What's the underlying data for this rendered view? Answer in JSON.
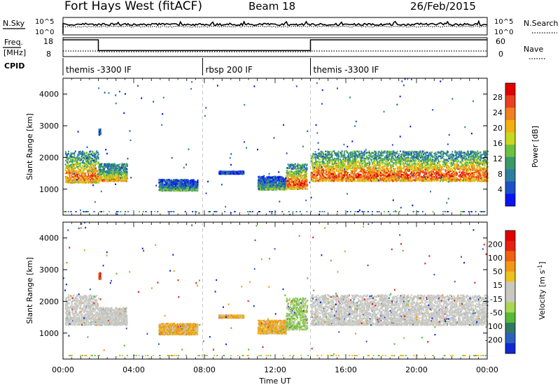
{
  "header": {
    "station": "Fort Hays West (fitACF)",
    "beam": "Beam 18",
    "date": "26/Feb/2015"
  },
  "top_panels": {
    "nsky_label": "N.Sky",
    "nsky_ticks": [
      "10^5",
      "10^0"
    ],
    "nsearch_label": "N.Search",
    "nsearch_ticks": [
      "10^5",
      "10^0"
    ],
    "freq_label": "Freq.",
    "freq_unit": "[MHz]",
    "freq_ticks": [
      "18",
      "8"
    ],
    "nave_label": "Nave",
    "nave_ticks": [
      "60",
      "0"
    ],
    "cpid_label": "CPID",
    "cpid_segments": [
      {
        "label": "themis -3300 IF",
        "start_hour": 0,
        "end_hour": 7.9
      },
      {
        "label": "rbsp 200 IF",
        "start_hour": 7.9,
        "end_hour": 14.0
      },
      {
        "label": "themis -3300 IF",
        "start_hour": 14.0,
        "end_hour": 24
      }
    ],
    "freq_steps": [
      {
        "start_hour": 0,
        "end_hour": 2.0,
        "mhz": 18
      },
      {
        "start_hour": 2.0,
        "end_hour": 14.0,
        "mhz": 11
      },
      {
        "start_hour": 14.0,
        "end_hour": 24,
        "mhz": 18
      }
    ]
  },
  "chart_data": [
    {
      "type": "heatmap",
      "name": "Power",
      "ylabel": "Slant Range [km]",
      "yticks": [
        "1000",
        "2000",
        "3000",
        "4000"
      ],
      "ylim": [
        180,
        4500
      ],
      "xlim": [
        0,
        24
      ],
      "colorbar": {
        "label": "Power [dB]",
        "ticks": [
          "4",
          "8",
          "12",
          "16",
          "20",
          "24",
          "28"
        ],
        "colors": [
          "#0a14f0",
          "#1e50c8",
          "#2d7fa0",
          "#3a9a6a",
          "#70c040",
          "#c8d820",
          "#f0b010",
          "#f08020",
          "#e84020",
          "#e00000"
        ]
      },
      "regions": [
        {
          "x0": 0.1,
          "x1": 2.0,
          "y0": 1200,
          "y1": 2200,
          "level": 0.55
        },
        {
          "x0": 2.0,
          "x1": 3.6,
          "y0": 1250,
          "y1": 1800,
          "level": 0.5
        },
        {
          "x0": 5.4,
          "x1": 7.6,
          "y0": 950,
          "y1": 1300,
          "level": 0.3
        },
        {
          "x0": 8.8,
          "x1": 10.2,
          "y0": 1480,
          "y1": 1560,
          "level": 0.2
        },
        {
          "x0": 11.0,
          "x1": 12.6,
          "y0": 980,
          "y1": 1400,
          "level": 0.3
        },
        {
          "x0": 12.6,
          "x1": 13.8,
          "y0": 1000,
          "y1": 1800,
          "level": 0.6
        },
        {
          "x0": 14.0,
          "x1": 24.0,
          "y0": 1250,
          "y1": 2200,
          "level": 0.6
        },
        {
          "x0": 2.0,
          "x1": 2.1,
          "y0": 2700,
          "y1": 2900,
          "level": 0.4
        }
      ]
    },
    {
      "type": "heatmap",
      "name": "Velocity",
      "ylabel": "Slant Range [km]",
      "xlabel": "Time UT",
      "yticks": [
        "1000",
        "2000",
        "3000",
        "4000"
      ],
      "xticks": [
        "00:00",
        "04:00",
        "08:00",
        "12:00",
        "16:00",
        "20:00",
        "00:00"
      ],
      "ylim": [
        180,
        4500
      ],
      "xlim": [
        0,
        24
      ],
      "colorbar": {
        "label": "Velocity [m s",
        "label_sup": "-1",
        "label_end": "]",
        "ticks": [
          "200",
          "100",
          "50",
          "15",
          "-15",
          "-50",
          "-100",
          "-200"
        ],
        "colors": [
          "#1028d0",
          "#2a60c0",
          "#307860",
          "#58b838",
          "#a8d850",
          "#c8c8c0",
          "#c8c8c0",
          "#f0c020",
          "#f09818",
          "#f06010",
          "#e82010",
          "#e00000"
        ]
      },
      "regions": [
        {
          "x0": 0.1,
          "x1": 2.0,
          "y0": 1250,
          "y1": 2200,
          "tone": "gray"
        },
        {
          "x0": 2.0,
          "x1": 3.6,
          "y0": 1250,
          "y1": 1800,
          "tone": "gray"
        },
        {
          "x0": 5.4,
          "x1": 7.6,
          "y0": 950,
          "y1": 1300,
          "tone": "orange"
        },
        {
          "x0": 8.8,
          "x1": 10.2,
          "y0": 1480,
          "y1": 1560,
          "tone": "orange"
        },
        {
          "x0": 11.0,
          "x1": 12.6,
          "y0": 980,
          "y1": 1400,
          "tone": "orange"
        },
        {
          "x0": 12.6,
          "x1": 13.8,
          "y0": 1100,
          "y1": 2100,
          "tone": "green"
        },
        {
          "x0": 14.0,
          "x1": 24.0,
          "y0": 1250,
          "y1": 2200,
          "tone": "gray"
        },
        {
          "x0": 2.0,
          "x1": 2.1,
          "y0": 2700,
          "y1": 2900,
          "tone": "red"
        }
      ]
    }
  ]
}
